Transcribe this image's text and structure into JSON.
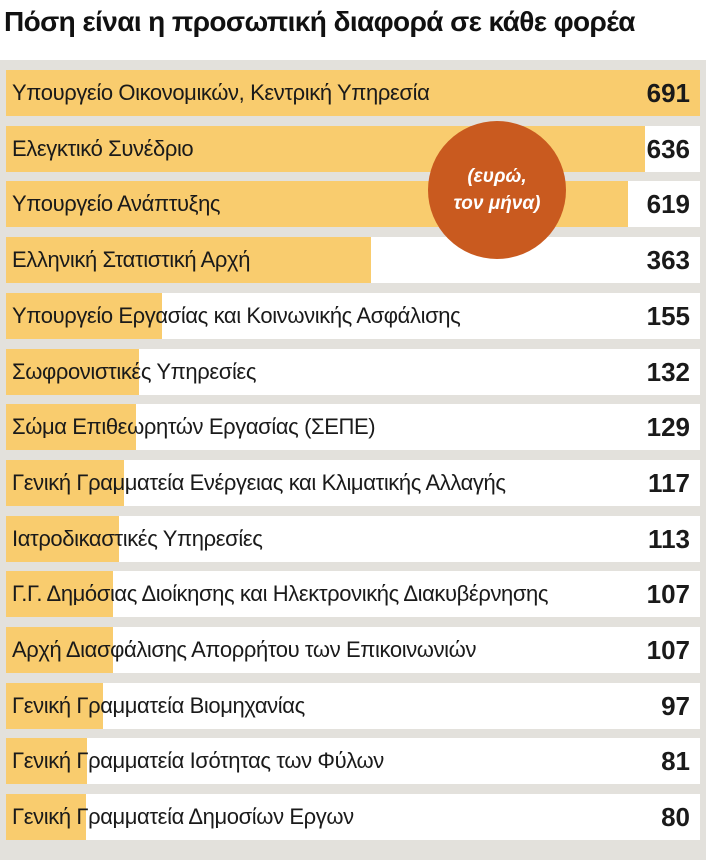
{
  "header": {
    "title": "Πόση είναι η προσωπική διαφορά σε κάθε φορέα"
  },
  "badge": {
    "line1": "(ευρώ,",
    "line2": "τον μήνα)"
  },
  "colors": {
    "bar": "#f9cc6e",
    "panel": "#e3e1dc",
    "badge": "#c95a1f"
  },
  "chart_data": {
    "type": "bar",
    "orientation": "horizontal",
    "title": "Πόση είναι η προσωπική διαφορά σε κάθε φορέα",
    "unit": "(ευρώ, τον μήνα)",
    "xlim": [
      0,
      691
    ],
    "categories": [
      "Υπουργείο Οικονομικών, Κεντρική Υπηρεσία",
      "Ελεγκτικό Συνέδριο",
      "Υπουργείο Ανάπτυξης",
      "Ελληνική Στατιστική Αρχή",
      "Υπουργείο Εργασίας και Κοινωνικής Ασφάλισης",
      "Σωφρονιστικές Υπηρεσίες",
      "Σώμα Επιθεωρητών Εργασίας (ΣΕΠΕ)",
      "Γενική Γραμματεία Ενέργειας και Κλιματικής Αλλαγής",
      "Ιατροδικαστικές Υπηρεσίες",
      "Γ.Γ. Δημόσιας Διοίκησης και Ηλεκτρονικής Διακυβέρνησης",
      "Αρχή Διασφάλισης Απορρήτου των Επικοινωνιών",
      "Γενική Γραμματεία Βιομηχανίας",
      "Γενική Γραμματεία Ισότητας των Φύλων",
      "Γενική Γραμματεία Δημοσίων Εργων"
    ],
    "values": [
      691,
      636,
      619,
      363,
      155,
      132,
      129,
      117,
      113,
      107,
      107,
      97,
      81,
      80
    ]
  }
}
